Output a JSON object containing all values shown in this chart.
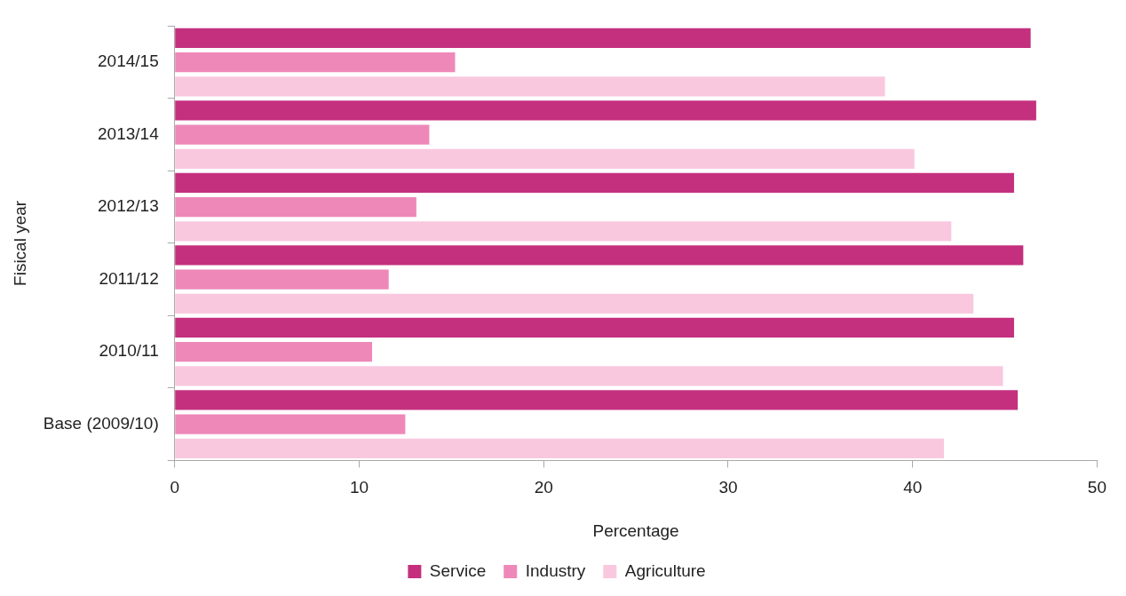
{
  "chart_data": {
    "type": "bar",
    "orientation": "horizontal",
    "xlabel": "Percentage",
    "ylabel": "Fisical year",
    "categories": [
      "2014/15",
      "2013/14",
      "2012/13",
      "2011/12",
      "2010/11",
      "Base (2009/10)"
    ],
    "series": [
      {
        "name": "Service",
        "color": "#c4307e",
        "values": [
          46.4,
          46.7,
          45.5,
          46.0,
          45.5,
          45.7
        ]
      },
      {
        "name": "Industry",
        "color": "#ee88b8",
        "values": [
          15.2,
          13.8,
          13.1,
          11.6,
          10.7,
          12.5
        ]
      },
      {
        "name": "Agriculture",
        "color": "#f9c8df",
        "values": [
          38.5,
          40.1,
          42.1,
          43.3,
          44.9,
          41.7
        ]
      }
    ],
    "xlim": [
      0,
      50
    ],
    "xticks": [
      0,
      10,
      20,
      30,
      40,
      50
    ],
    "grid": false,
    "legend": "bottom"
  }
}
